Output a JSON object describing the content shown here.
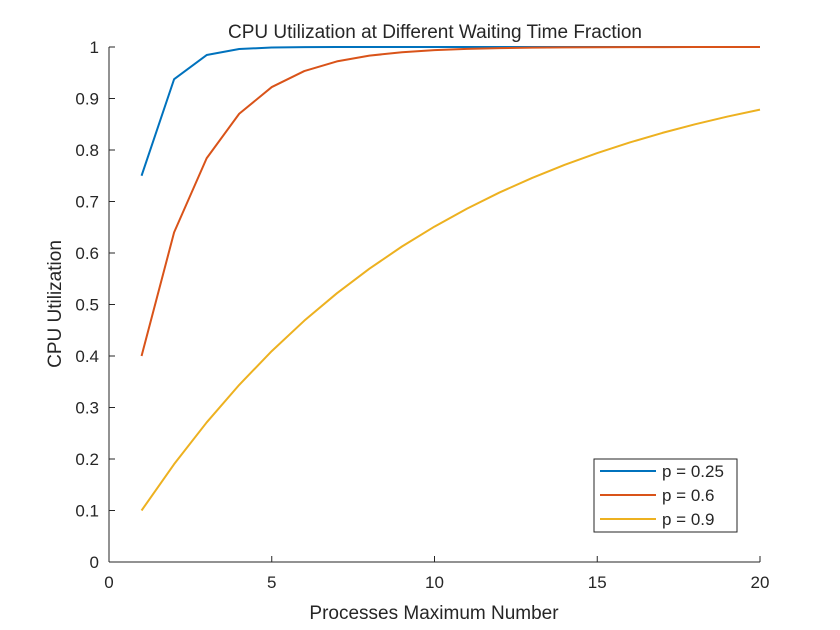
{
  "chart_data": {
    "type": "line",
    "title": "CPU Utilization at Different Waiting Time Fraction",
    "xlabel": "Processes Maximum Number",
    "ylabel": "CPU Utilization",
    "xlim": [
      0,
      20
    ],
    "ylim": [
      0,
      1
    ],
    "xticks": [
      0,
      5,
      10,
      15,
      20
    ],
    "yticks": [
      0,
      0.1,
      0.2,
      0.3,
      0.4,
      0.5,
      0.6,
      0.7,
      0.8,
      0.9,
      1
    ],
    "x": [
      1,
      2,
      3,
      4,
      5,
      6,
      7,
      8,
      9,
      10,
      11,
      12,
      13,
      14,
      15,
      16,
      17,
      18,
      19,
      20
    ],
    "grid": false,
    "legend_position": "bottom-right",
    "series": [
      {
        "name": "p = 0.25",
        "color": "#0072BD",
        "values": [
          0.75,
          0.9375,
          0.9844,
          0.9961,
          0.999,
          0.9998,
          0.9999,
          1.0,
          1.0,
          1.0,
          1.0,
          1.0,
          1.0,
          1.0,
          1.0,
          1.0,
          1.0,
          1.0,
          1.0,
          1.0
        ]
      },
      {
        "name": "p = 0.6",
        "color": "#D95319",
        "values": [
          0.4,
          0.64,
          0.784,
          0.8704,
          0.9222,
          0.9533,
          0.972,
          0.9832,
          0.9899,
          0.994,
          0.9964,
          0.9978,
          0.9987,
          0.9992,
          0.9995,
          0.9997,
          0.9998,
          0.9999,
          0.9999,
          1.0
        ]
      },
      {
        "name": "p = 0.9",
        "color": "#EDB120",
        "values": [
          0.1,
          0.19,
          0.271,
          0.3439,
          0.4095,
          0.4686,
          0.5217,
          0.5695,
          0.6126,
          0.6513,
          0.6862,
          0.7176,
          0.7458,
          0.7712,
          0.7941,
          0.8147,
          0.8332,
          0.8499,
          0.8649,
          0.8784
        ]
      }
    ]
  }
}
